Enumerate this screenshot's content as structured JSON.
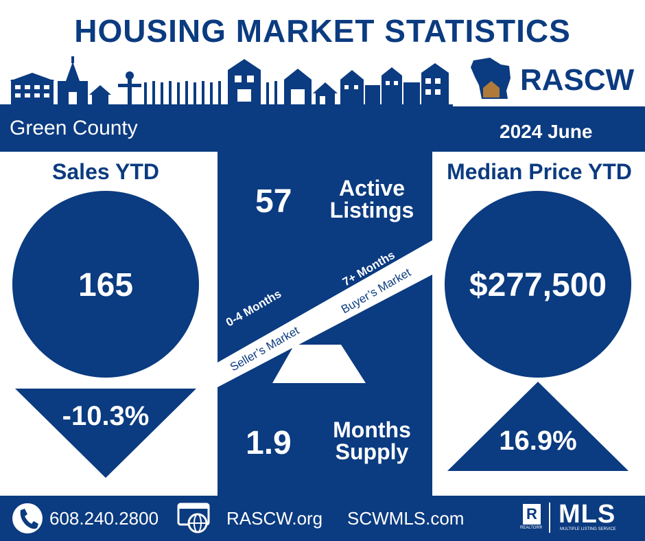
{
  "header": {
    "title": "HOUSING MARKET STATISTICS",
    "brand": "RASCW"
  },
  "band": {
    "county": "Green County",
    "period": "2024 June"
  },
  "sales": {
    "heading": "Sales YTD",
    "value": "165",
    "change": "-10.3%",
    "direction": "down"
  },
  "median_price": {
    "heading": "Median Price YTD",
    "value": "$277,500",
    "change": "16.9%",
    "direction": "up"
  },
  "active": {
    "value": "57",
    "label_line1": "Active",
    "label_line2": "Listings"
  },
  "supply": {
    "value": "1.9",
    "label_line1": "Months",
    "label_line2": "Supply"
  },
  "scale": {
    "left_top": "0-4 Months",
    "left_bottom": "Seller’s Market",
    "right_top": "7+ Months",
    "right_bottom": "Buyer’s Market"
  },
  "footer": {
    "phone": "608.240.2800",
    "site1": "RASCW.org",
    "site2": "SCWMLS.com",
    "realtor_mark": "R",
    "realtor_text": "REALTOR®",
    "mls": "MLS",
    "mls_sub": "MULTIPLE LISTING SERVICE"
  },
  "colors": {
    "navy": "#0b3b80",
    "white": "#ffffff",
    "house_roof": "#b07a3a"
  }
}
